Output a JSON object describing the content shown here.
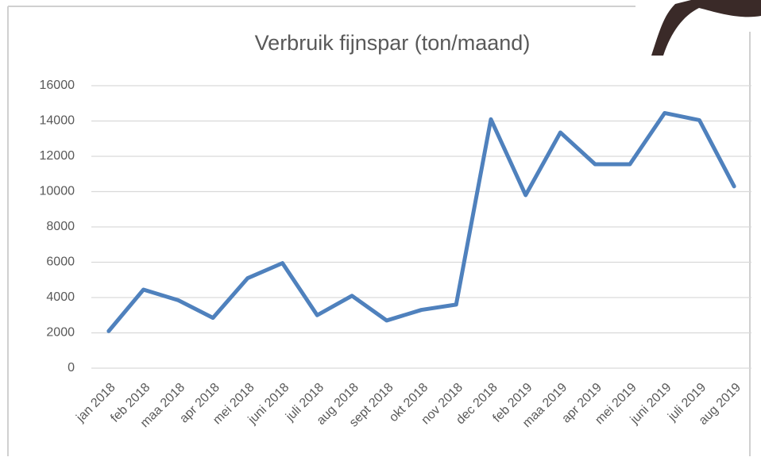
{
  "chart_data": {
    "type": "line",
    "title": "Verbruik fijnspar (ton/maand)",
    "categories": [
      "jan 2018",
      "feb 2018",
      "maa 2018",
      "apr 2018",
      "mei 2018",
      "juni 2018",
      "juli 2018",
      "aug 2018",
      "sept 2018",
      "okt 2018",
      "nov 2018",
      "dec 2018",
      "feb 2019",
      "maa 2019",
      "apr 2019",
      "mei 2019",
      "juni 2019",
      "juli 2019",
      "aug 2019"
    ],
    "values": [
      2100,
      4450,
      3850,
      2850,
      5100,
      5950,
      3000,
      4100,
      2700,
      3300,
      3600,
      14100,
      9800,
      13350,
      11550,
      11550,
      14450,
      14050,
      10300
    ],
    "color": "#4f81bd",
    "ylim": [
      0,
      16000
    ],
    "yticks": [
      0,
      2000,
      4000,
      6000,
      8000,
      10000,
      12000,
      14000,
      16000
    ],
    "grid": true
  }
}
